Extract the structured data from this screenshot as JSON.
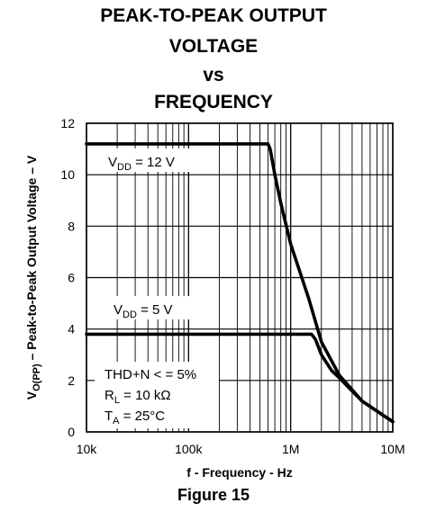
{
  "title_lines": [
    "PEAK-TO-PEAK OUTPUT",
    "VOLTAGE",
    "vs",
    "FREQUENCY"
  ],
  "figure_label": "Figure 15",
  "chart_data": {
    "type": "line",
    "title": "PEAK-TO-PEAK OUTPUT VOLTAGE vs FREQUENCY",
    "xlabel": "f - Frequency - Hz",
    "ylabel_parts": {
      "pre": "V",
      "sub": "O(PP)",
      "post": " – Peak-to-Peak Output Voltage – V"
    },
    "x_scale": "log",
    "xlim": [
      10000,
      10000000
    ],
    "ylim": [
      0,
      12
    ],
    "x_ticks": [
      {
        "value": 10000,
        "label": "10k"
      },
      {
        "value": 100000,
        "label": "100k"
      },
      {
        "value": 1000000,
        "label": "1M"
      },
      {
        "value": 10000000,
        "label": "10M"
      }
    ],
    "y_ticks": [
      {
        "value": 0,
        "label": "0"
      },
      {
        "value": 2,
        "label": "2"
      },
      {
        "value": 4,
        "label": "4"
      },
      {
        "value": 6,
        "label": "6"
      },
      {
        "value": 8,
        "label": "8"
      },
      {
        "value": 10,
        "label": "10"
      },
      {
        "value": 12,
        "label": "12"
      }
    ],
    "grid": true,
    "series": [
      {
        "label_parts": {
          "pre": "V",
          "sub": "DD",
          "post": " = 12 V"
        },
        "x": [
          10000,
          100000,
          600000,
          630000,
          700000,
          800000,
          1000000,
          1500000,
          2000000,
          3000000,
          5000000,
          10000000
        ],
        "y": [
          11.2,
          11.2,
          11.2,
          11.0,
          10.0,
          8.9,
          7.3,
          5.2,
          3.5,
          2.2,
          1.2,
          0.4
        ]
      },
      {
        "label_parts": {
          "pre": "V",
          "sub": "DD",
          "post": " = 5 V"
        },
        "x": [
          10000,
          100000,
          1000000,
          1600000,
          1750000,
          2000000,
          2500000,
          3000000,
          5000000,
          10000000
        ],
        "y": [
          3.8,
          3.8,
          3.8,
          3.8,
          3.6,
          3.0,
          2.4,
          2.1,
          1.2,
          0.4
        ]
      }
    ],
    "conditions": [
      {
        "pre": "THD+N < = 5%",
        "sub": "",
        "post": ""
      },
      {
        "pre": "R",
        "sub": "L",
        "post": " = 10 kΩ"
      },
      {
        "pre": "T",
        "sub": "A",
        "post": " = 25°C"
      }
    ],
    "line_color": "#000000"
  }
}
